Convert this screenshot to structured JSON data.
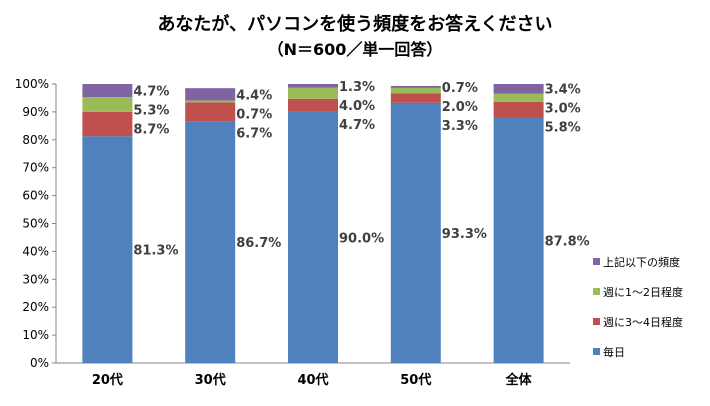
{
  "chart_data": {
    "type": "bar",
    "stacked": true,
    "title": "あなたが、パソコンを使う頻度をお答えください",
    "subtitle": "（N＝600／単一回答）",
    "categories": [
      "20代",
      "30代",
      "40代",
      "50代",
      "全体"
    ],
    "ylim": [
      0,
      100
    ],
    "ytick_labels": [
      "0%",
      "10%",
      "20%",
      "30%",
      "40%",
      "50%",
      "60%",
      "70%",
      "80%",
      "90%",
      "100%"
    ],
    "grid": false,
    "legend_position": "right",
    "series": [
      {
        "name": "毎日",
        "color": "#4F81BD",
        "values": [
          81.3,
          86.7,
          90.0,
          93.3,
          87.8
        ],
        "labels": [
          "81.3%",
          "86.7%",
          "90.0%",
          "93.3%",
          "87.8%"
        ]
      },
      {
        "name": "週に3～4日程度",
        "color": "#C0504D",
        "values": [
          8.7,
          6.7,
          4.7,
          3.3,
          5.8
        ],
        "labels": [
          "8.7%",
          "6.7%",
          "4.7%",
          "3.3%",
          "5.8%"
        ]
      },
      {
        "name": "週に1～2日程度",
        "color": "#9BBB59",
        "values": [
          5.3,
          0.7,
          4.0,
          2.0,
          3.0
        ],
        "labels": [
          "5.3%",
          "0.7%",
          "4.0%",
          "2.0%",
          "3.0%"
        ]
      },
      {
        "name": "上記以下の頻度",
        "color": "#8064A2",
        "values": [
          4.7,
          4.4,
          1.3,
          0.7,
          3.4
        ],
        "labels": [
          "4.7%",
          "4.4%",
          "1.3%",
          "0.7%",
          "3.4%"
        ]
      }
    ]
  }
}
